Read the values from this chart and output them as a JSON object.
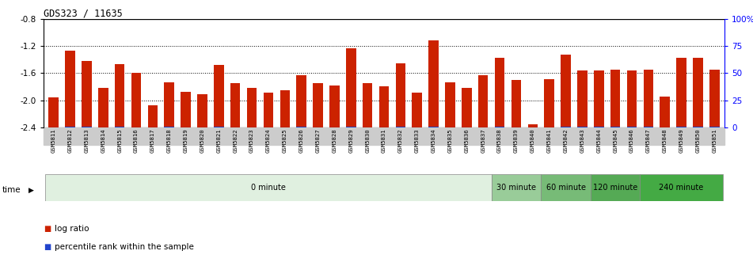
{
  "title": "GDS323 / 11635",
  "samples": [
    "GSM5811",
    "GSM5812",
    "GSM5813",
    "GSM5814",
    "GSM5815",
    "GSM5816",
    "GSM5817",
    "GSM5818",
    "GSM5819",
    "GSM5820",
    "GSM5821",
    "GSM5822",
    "GSM5823",
    "GSM5824",
    "GSM5825",
    "GSM5826",
    "GSM5827",
    "GSM5828",
    "GSM5829",
    "GSM5830",
    "GSM5831",
    "GSM5832",
    "GSM5833",
    "GSM5834",
    "GSM5835",
    "GSM5836",
    "GSM5837",
    "GSM5838",
    "GSM5839",
    "GSM5840",
    "GSM5841",
    "GSM5842",
    "GSM5843",
    "GSM5844",
    "GSM5845",
    "GSM5846",
    "GSM5847",
    "GSM5848",
    "GSM5849",
    "GSM5850",
    "GSM5851"
  ],
  "log_ratio": [
    -1.95,
    -1.27,
    -1.42,
    -1.82,
    -1.47,
    -1.6,
    -2.07,
    -1.73,
    -1.87,
    -1.91,
    -1.48,
    -1.75,
    -1.82,
    -1.88,
    -1.85,
    -1.63,
    -1.75,
    -1.78,
    -1.23,
    -1.75,
    -1.79,
    -1.46,
    -1.88,
    -1.12,
    -1.73,
    -1.82,
    -1.63,
    -1.37,
    -1.7,
    -2.35,
    -1.69,
    -1.33,
    -1.56,
    -1.56,
    -1.55,
    -1.56,
    -1.55,
    -1.94,
    -1.37,
    -1.37,
    -1.55
  ],
  "percentile": [
    8,
    12,
    10,
    8,
    12,
    8,
    6,
    10,
    8,
    6,
    10,
    8,
    6,
    6,
    6,
    10,
    8,
    6,
    14,
    6,
    6,
    12,
    6,
    16,
    8,
    6,
    8,
    14,
    8,
    3,
    8,
    14,
    10,
    10,
    10,
    10,
    10,
    6,
    14,
    14,
    10
  ],
  "bar_color": "#cc2200",
  "percentile_color": "#2244cc",
  "ylim_left": [
    -2.4,
    -0.8
  ],
  "ylim_right": [
    0,
    100
  ],
  "yticks_left": [
    -2.4,
    -2.0,
    -1.6,
    -1.2,
    -0.8
  ],
  "yticks_right": [
    0,
    25,
    50,
    75,
    100
  ],
  "ytick_labels_right": [
    "0",
    "25",
    "50",
    "75",
    "100%"
  ],
  "grid_yticks": [
    -2.0,
    -1.6,
    -1.2
  ],
  "groups": [
    {
      "label": "0 minute",
      "start": 0,
      "end": 27,
      "color": "#e0f0e0"
    },
    {
      "label": "30 minute",
      "start": 27,
      "end": 30,
      "color": "#99cc99"
    },
    {
      "label": "60 minute",
      "start": 30,
      "end": 33,
      "color": "#77bb77"
    },
    {
      "label": "120 minute",
      "start": 33,
      "end": 36,
      "color": "#55aa55"
    },
    {
      "label": "240 minute",
      "start": 36,
      "end": 41,
      "color": "#44aa44"
    }
  ],
  "legend_log_ratio": "log ratio",
  "legend_percentile": "percentile rank within the sample",
  "bar_width": 0.6,
  "fig_bg": "white",
  "xticklabel_bg": "#cccccc",
  "pct_scale": 0.06
}
